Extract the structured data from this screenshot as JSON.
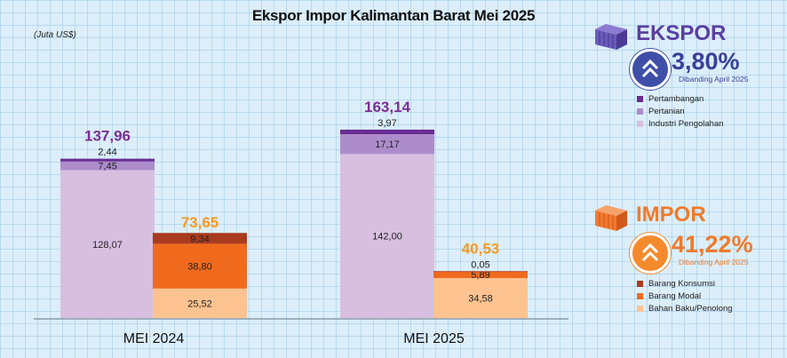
{
  "title": "Ekspor Impor Kalimantan Barat Mei 2025",
  "unit_label": "(Juta US$)",
  "colors": {
    "ekspor_accent": "#5b3fa0",
    "impor_accent": "#f0892a",
    "pertambangan": "#6a2d93",
    "pertanian": "#ad8ccb",
    "industri": "#d8bfe0",
    "konsumsi": "#a93b1e",
    "modal": "#f06a1e",
    "bahan_baku": "#fcc390"
  },
  "ekspor": {
    "heading": "EKSPOR",
    "percent": "3,80%",
    "comparison": "Dibanding April 2025",
    "icon": "double-chevron-up-icon",
    "badge_icon": "container-icon",
    "legend": [
      {
        "label": "Pertambangan",
        "color": "#6a2d93"
      },
      {
        "label": "Pertanian",
        "color": "#ad8ccb"
      },
      {
        "label": "Industri Pengolahan",
        "color": "#d8bfe0"
      }
    ]
  },
  "impor": {
    "heading": "IMPOR",
    "percent": "41,22%",
    "comparison": "Dibanding April 2025",
    "icon": "double-chevron-up-icon",
    "badge_icon": "container-icon",
    "legend": [
      {
        "label": "Barang Konsumsi",
        "color": "#a93b1e"
      },
      {
        "label": "Barang Modal",
        "color": "#f06a1e"
      },
      {
        "label": "Bahan Baku/Penolong",
        "color": "#fcc390"
      }
    ]
  },
  "chart_data": {
    "type": "bar",
    "stacked": true,
    "grouped": true,
    "categories": [
      "MEI 2024",
      "MEI 2025"
    ],
    "ylim": [
      0,
      180
    ],
    "groups": [
      {
        "key": "ekspor",
        "totals": [
          137.96,
          163.14
        ],
        "total_labels": [
          "137,96",
          "163,14"
        ],
        "total_color": "#7b2f93",
        "series": [
          {
            "name": "Industri Pengolahan",
            "color": "#d8bfe0",
            "values": [
              128.07,
              142.0
            ],
            "labels": [
              "128,07",
              "142,00"
            ],
            "label_pos": "inside"
          },
          {
            "name": "Pertanian",
            "color": "#ad8ccb",
            "values": [
              7.45,
              17.17
            ],
            "labels": [
              "7,45",
              "17,17"
            ],
            "label_pos": "inside"
          },
          {
            "name": "Pertambangan",
            "color": "#6a2d93",
            "values": [
              2.44,
              3.97
            ],
            "labels": [
              "2,44",
              "3,97"
            ],
            "label_pos": "above"
          }
        ]
      },
      {
        "key": "impor",
        "totals": [
          73.65,
          40.53
        ],
        "total_labels": [
          "73,65",
          "40,53"
        ],
        "total_color": "#f39a24",
        "series": [
          {
            "name": "Bahan Baku/Penolong",
            "color": "#fcc390",
            "values": [
              25.52,
              34.58
            ],
            "labels": [
              "25,52",
              "34,58"
            ],
            "label_pos": "inside"
          },
          {
            "name": "Barang Modal",
            "color": "#f06a1e",
            "values": [
              38.8,
              5.89
            ],
            "labels": [
              "38,80",
              "5,89"
            ],
            "label_pos": "inside"
          },
          {
            "name": "Barang Konsumsi",
            "color": "#a93b1e",
            "values": [
              9.34,
              0.05
            ],
            "labels": [
              "9,34",
              "0,05"
            ],
            "label_pos": [
              "inside",
              "above"
            ]
          }
        ]
      }
    ]
  }
}
